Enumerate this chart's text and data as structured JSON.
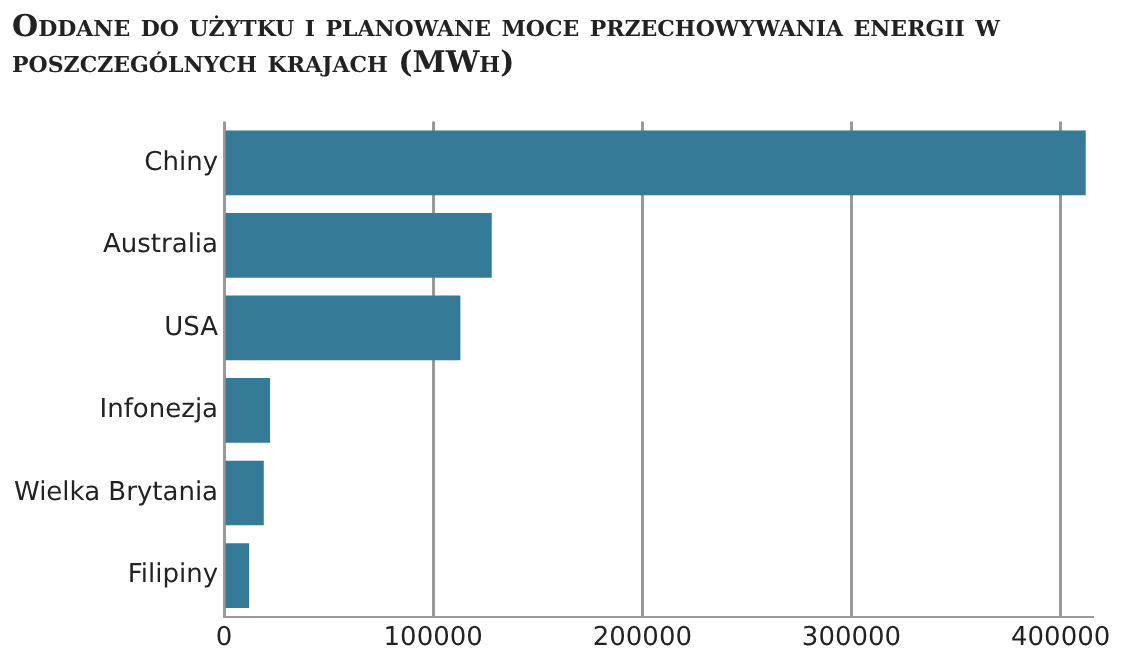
{
  "chart_data": {
    "type": "bar",
    "orientation": "horizontal",
    "title": "Oddane do użytku i planowane moce przechowywania energii w poszczególnych krajach (MWh)",
    "categories": [
      "Chiny",
      "Australia",
      "USA",
      "Infonezja",
      "Wielka Brytania",
      "Filipiny"
    ],
    "values": [
      412000,
      128000,
      113000,
      22000,
      19000,
      12000
    ],
    "color": "#357a96",
    "xlim": [
      0,
      415000
    ],
    "xticks": [
      0,
      100000,
      200000,
      300000,
      400000
    ],
    "grid": "x",
    "legend": false
  }
}
